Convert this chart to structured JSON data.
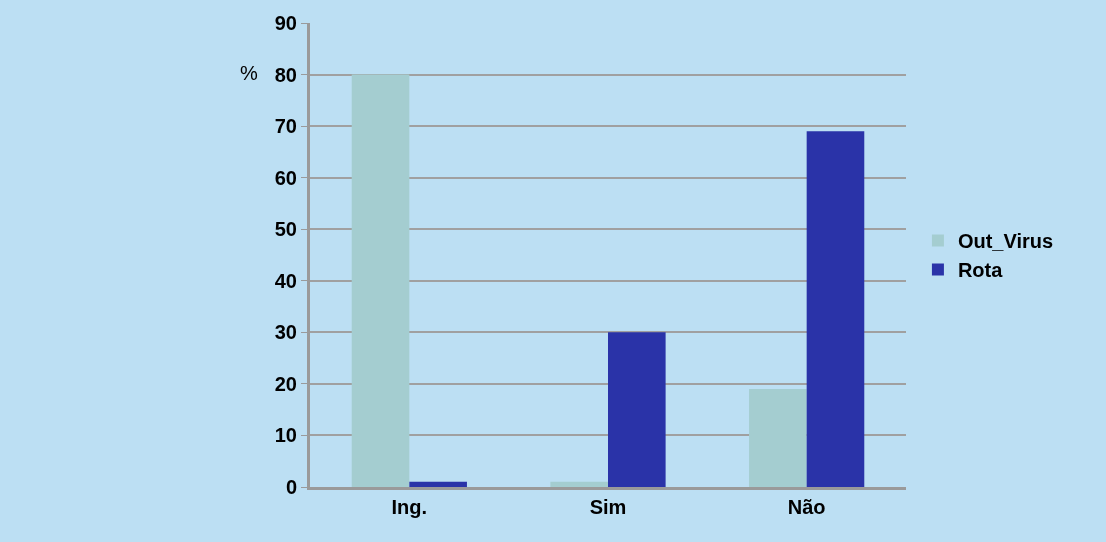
{
  "chart_data": {
    "type": "bar",
    "ylabel": "%",
    "categories": [
      "Ing.",
      "Sim",
      "Não"
    ],
    "series": [
      {
        "name": "Out_Virus",
        "color": "#a4cdd0",
        "values": [
          80,
          1,
          19
        ]
      },
      {
        "name": "Rota",
        "color": "#2a33a8",
        "values": [
          1,
          30,
          69
        ]
      }
    ],
    "ylim": [
      0,
      90
    ],
    "yticks": [
      0,
      10,
      20,
      30,
      40,
      50,
      60,
      70,
      80,
      90
    ],
    "grid": "y",
    "legend": "right"
  }
}
